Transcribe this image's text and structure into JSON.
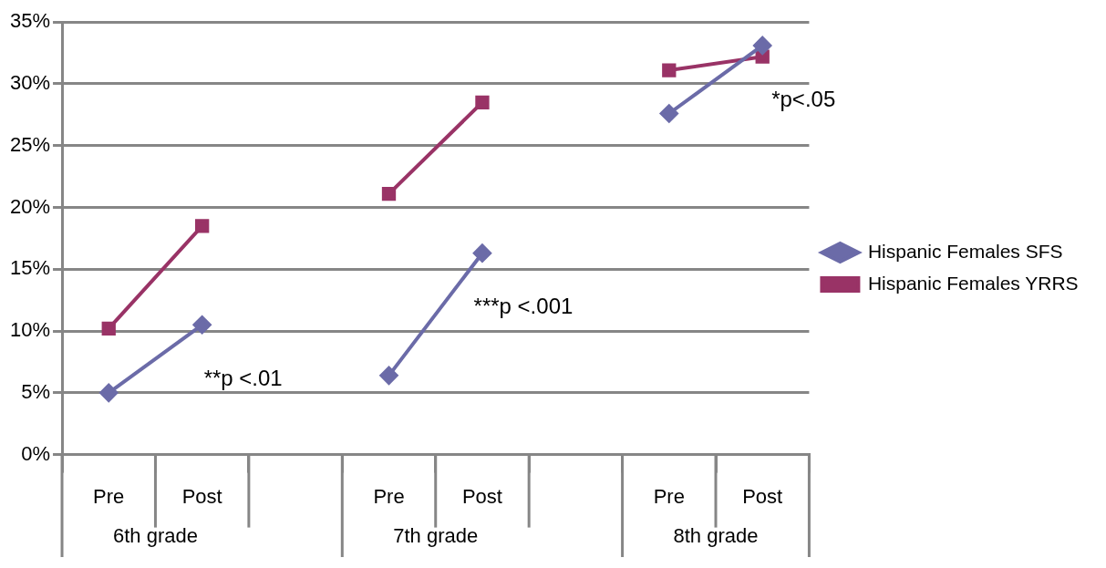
{
  "chart_data": {
    "type": "line",
    "categories": [
      "Pre",
      "Post",
      null,
      "Pre",
      "Post",
      null,
      "Pre",
      "Post"
    ],
    "series": [
      {
        "name": "Hispanic Females SFS",
        "color": "#6b6ba8",
        "marker": "diamond",
        "values": [
          5.0,
          10.5,
          null,
          6.4,
          16.3,
          null,
          27.6,
          33.1
        ]
      },
      {
        "name": "Hispanic Females YRRS",
        "color": "#993366",
        "marker": "square",
        "values": [
          10.2,
          18.5,
          null,
          21.1,
          28.5,
          null,
          31.1,
          32.2
        ]
      }
    ],
    "ylim": [
      0,
      35
    ],
    "yticks": [
      {
        "value": 0,
        "label": "0%"
      },
      {
        "value": 5,
        "label": "5%"
      },
      {
        "value": 10,
        "label": "10%"
      },
      {
        "value": 15,
        "label": "15%"
      },
      {
        "value": 20,
        "label": "20%"
      },
      {
        "value": 25,
        "label": "25%"
      },
      {
        "value": 30,
        "label": "30%"
      },
      {
        "value": 35,
        "label": "35%"
      }
    ],
    "grid": "y",
    "legend": "right",
    "annotations": [
      "6th grade",
      "7th grade",
      "8th grade",
      "**p <.01",
      "***p <.001",
      "*p<.05"
    ]
  }
}
